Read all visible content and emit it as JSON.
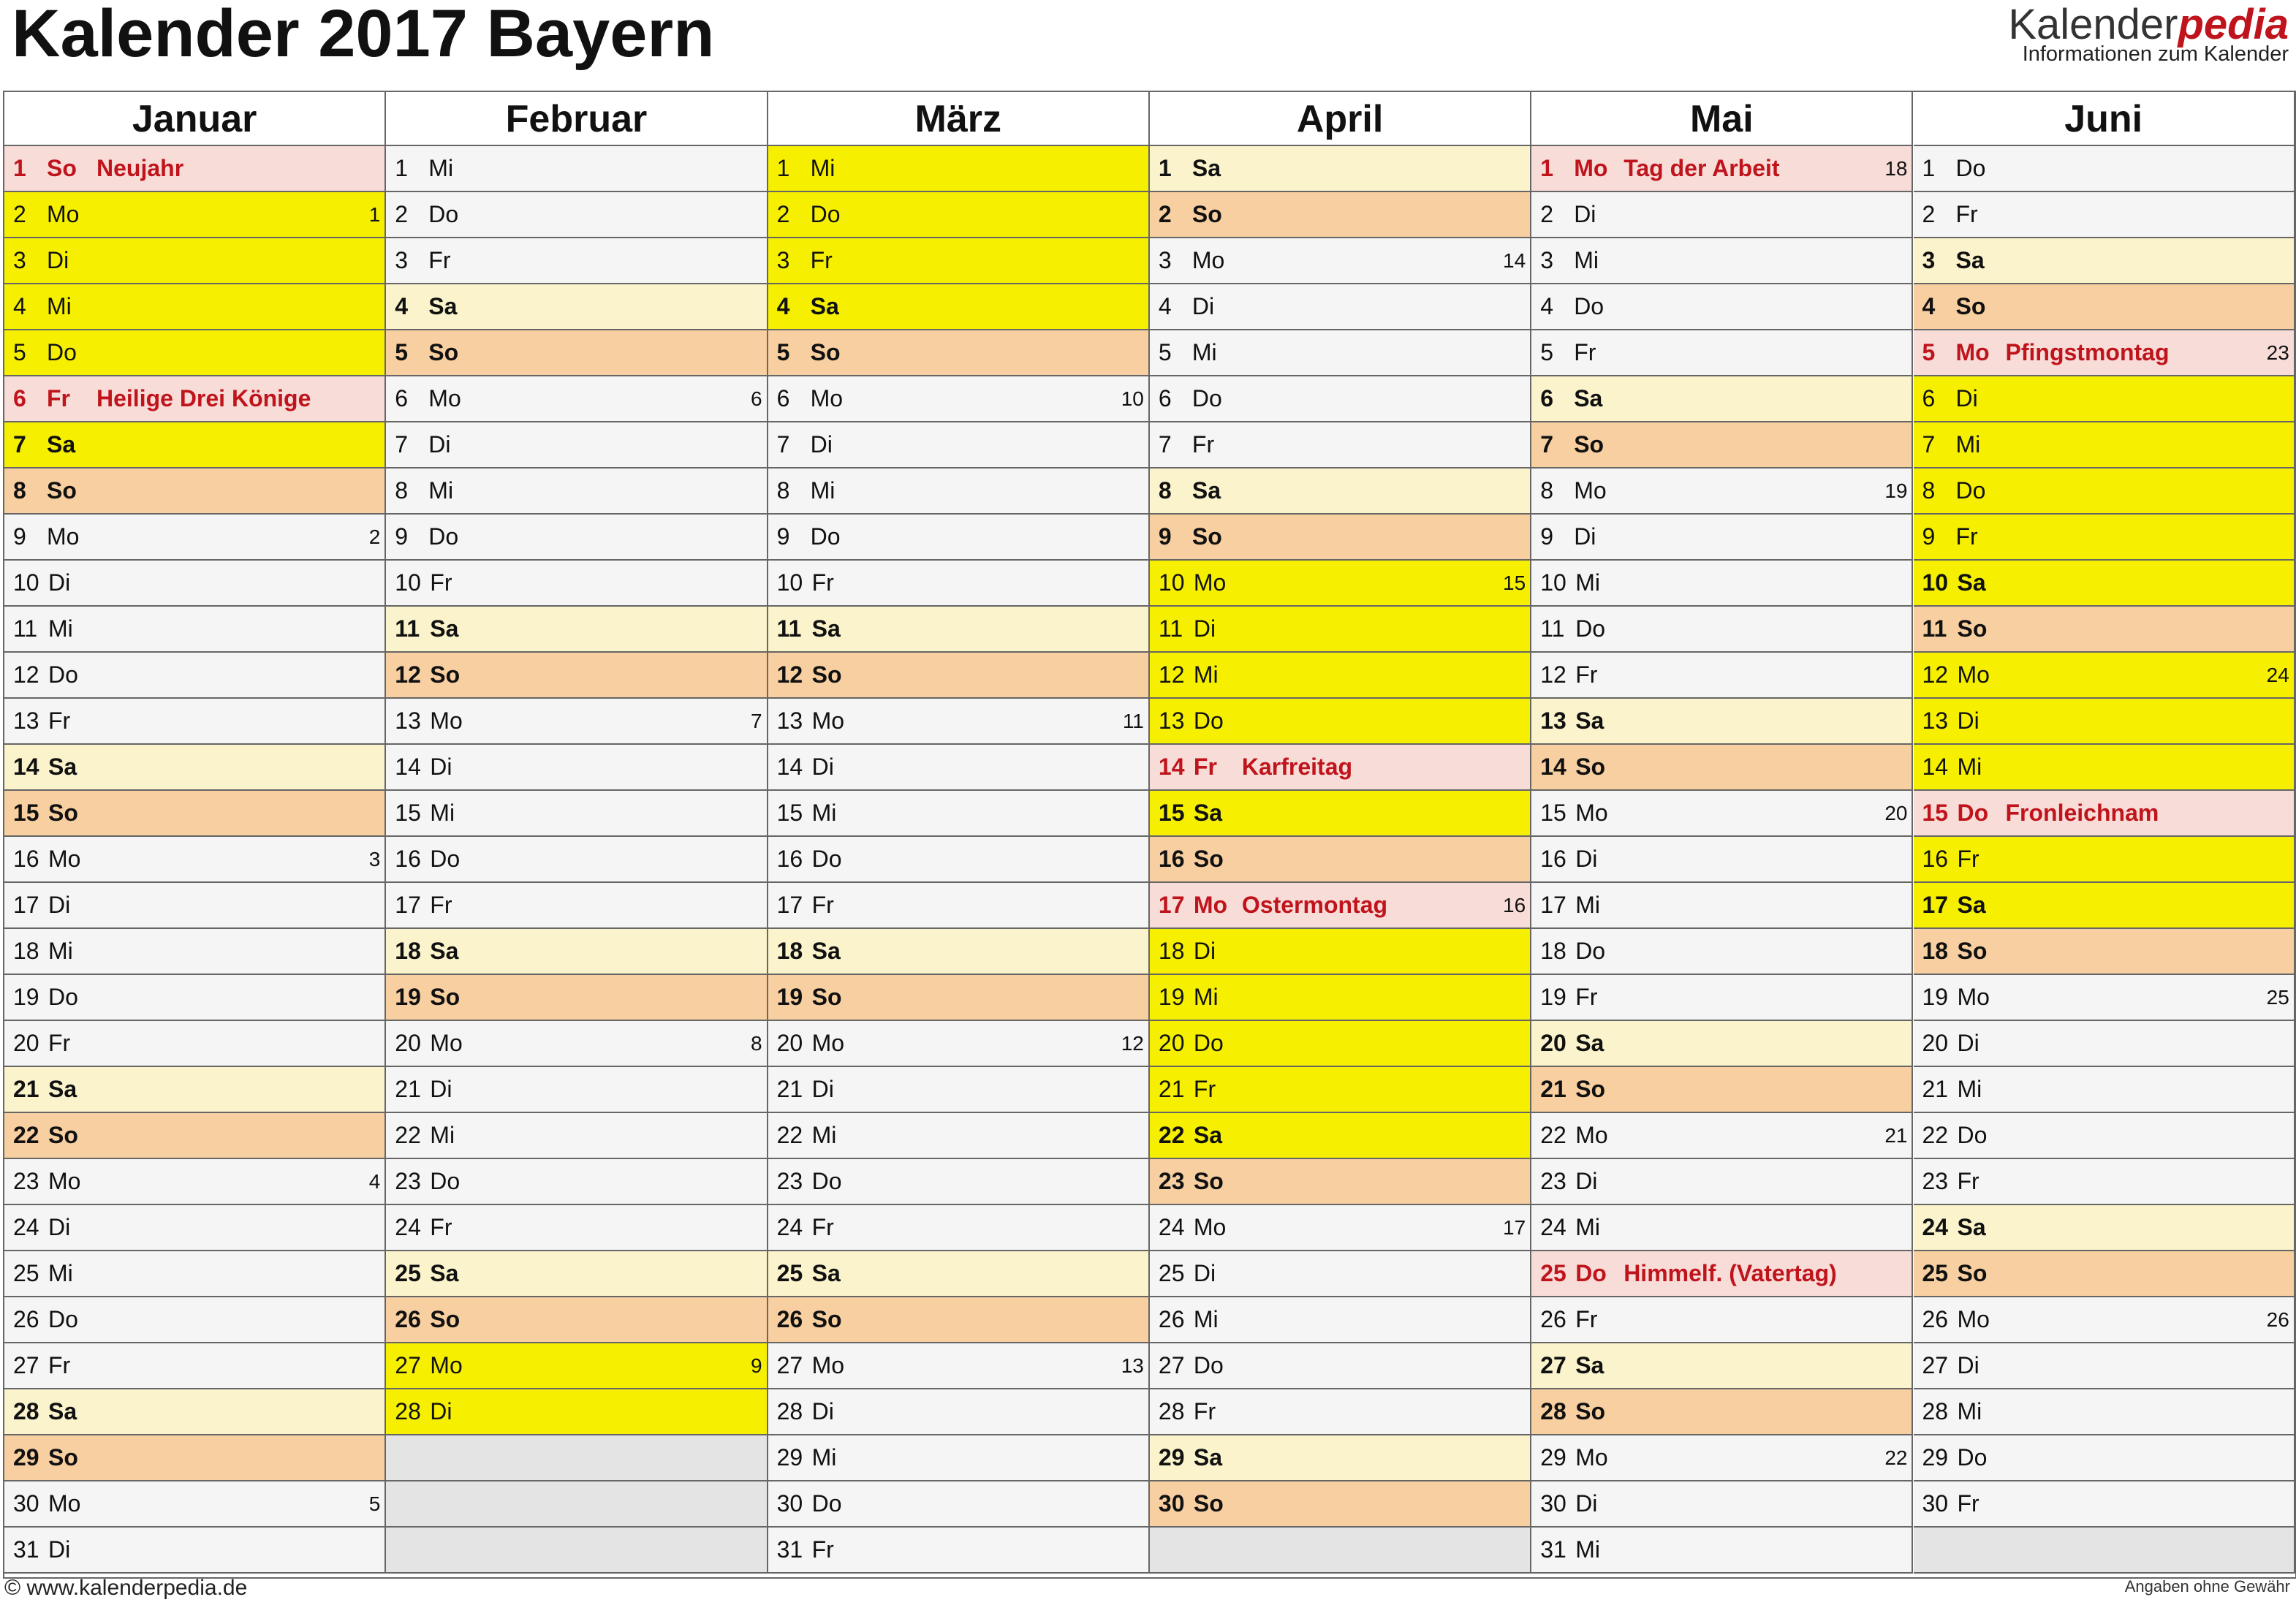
{
  "header": {
    "title": "Kalender 2017 Bayern",
    "logo_a": "Kalender",
    "logo_b": "pedia",
    "logo_sub": "Informationen zum Kalender"
  },
  "footer": {
    "left": "© www.kalenderpedia.de",
    "right": "Angaben ohne Gewähr"
  },
  "colors": {
    "holiday": "#f8dcd8",
    "sunday": "#f8cfa0",
    "saturday": "#faf3cb",
    "ferien": "#f6f000",
    "weekday": "#f5f5f5",
    "empty": "#e4e4e4"
  },
  "months": [
    {
      "name": "Januar",
      "days": [
        {
          "d": 1,
          "w": "So",
          "h": "Neujahr"
        },
        {
          "d": 2,
          "w": "Mo",
          "kw": 1,
          "f": true
        },
        {
          "d": 3,
          "w": "Di",
          "f": true
        },
        {
          "d": 4,
          "w": "Mi",
          "f": true
        },
        {
          "d": 5,
          "w": "Do",
          "f": true
        },
        {
          "d": 6,
          "w": "Fr",
          "h": "Heilige Drei Könige"
        },
        {
          "d": 7,
          "w": "Sa",
          "f": true
        },
        {
          "d": 8,
          "w": "So"
        },
        {
          "d": 9,
          "w": "Mo",
          "kw": 2
        },
        {
          "d": 10,
          "w": "Di"
        },
        {
          "d": 11,
          "w": "Mi"
        },
        {
          "d": 12,
          "w": "Do"
        },
        {
          "d": 13,
          "w": "Fr"
        },
        {
          "d": 14,
          "w": "Sa"
        },
        {
          "d": 15,
          "w": "So"
        },
        {
          "d": 16,
          "w": "Mo",
          "kw": 3
        },
        {
          "d": 17,
          "w": "Di"
        },
        {
          "d": 18,
          "w": "Mi"
        },
        {
          "d": 19,
          "w": "Do"
        },
        {
          "d": 20,
          "w": "Fr"
        },
        {
          "d": 21,
          "w": "Sa"
        },
        {
          "d": 22,
          "w": "So"
        },
        {
          "d": 23,
          "w": "Mo",
          "kw": 4
        },
        {
          "d": 24,
          "w": "Di"
        },
        {
          "d": 25,
          "w": "Mi"
        },
        {
          "d": 26,
          "w": "Do"
        },
        {
          "d": 27,
          "w": "Fr"
        },
        {
          "d": 28,
          "w": "Sa"
        },
        {
          "d": 29,
          "w": "So"
        },
        {
          "d": 30,
          "w": "Mo",
          "kw": 5
        },
        {
          "d": 31,
          "w": "Di"
        }
      ]
    },
    {
      "name": "Februar",
      "days": [
        {
          "d": 1,
          "w": "Mi"
        },
        {
          "d": 2,
          "w": "Do"
        },
        {
          "d": 3,
          "w": "Fr"
        },
        {
          "d": 4,
          "w": "Sa"
        },
        {
          "d": 5,
          "w": "So"
        },
        {
          "d": 6,
          "w": "Mo",
          "kw": 6
        },
        {
          "d": 7,
          "w": "Di"
        },
        {
          "d": 8,
          "w": "Mi"
        },
        {
          "d": 9,
          "w": "Do"
        },
        {
          "d": 10,
          "w": "Fr"
        },
        {
          "d": 11,
          "w": "Sa"
        },
        {
          "d": 12,
          "w": "So"
        },
        {
          "d": 13,
          "w": "Mo",
          "kw": 7
        },
        {
          "d": 14,
          "w": "Di"
        },
        {
          "d": 15,
          "w": "Mi"
        },
        {
          "d": 16,
          "w": "Do"
        },
        {
          "d": 17,
          "w": "Fr"
        },
        {
          "d": 18,
          "w": "Sa"
        },
        {
          "d": 19,
          "w": "So"
        },
        {
          "d": 20,
          "w": "Mo",
          "kw": 8
        },
        {
          "d": 21,
          "w": "Di"
        },
        {
          "d": 22,
          "w": "Mi"
        },
        {
          "d": 23,
          "w": "Do"
        },
        {
          "d": 24,
          "w": "Fr"
        },
        {
          "d": 25,
          "w": "Sa"
        },
        {
          "d": 26,
          "w": "So"
        },
        {
          "d": 27,
          "w": "Mo",
          "kw": 9,
          "f": true
        },
        {
          "d": 28,
          "w": "Di",
          "f": true
        }
      ]
    },
    {
      "name": "März",
      "days": [
        {
          "d": 1,
          "w": "Mi",
          "f": true
        },
        {
          "d": 2,
          "w": "Do",
          "f": true
        },
        {
          "d": 3,
          "w": "Fr",
          "f": true
        },
        {
          "d": 4,
          "w": "Sa",
          "f": true
        },
        {
          "d": 5,
          "w": "So"
        },
        {
          "d": 6,
          "w": "Mo",
          "kw": 10
        },
        {
          "d": 7,
          "w": "Di"
        },
        {
          "d": 8,
          "w": "Mi"
        },
        {
          "d": 9,
          "w": "Do"
        },
        {
          "d": 10,
          "w": "Fr"
        },
        {
          "d": 11,
          "w": "Sa"
        },
        {
          "d": 12,
          "w": "So"
        },
        {
          "d": 13,
          "w": "Mo",
          "kw": 11
        },
        {
          "d": 14,
          "w": "Di"
        },
        {
          "d": 15,
          "w": "Mi"
        },
        {
          "d": 16,
          "w": "Do"
        },
        {
          "d": 17,
          "w": "Fr"
        },
        {
          "d": 18,
          "w": "Sa"
        },
        {
          "d": 19,
          "w": "So"
        },
        {
          "d": 20,
          "w": "Mo",
          "kw": 12
        },
        {
          "d": 21,
          "w": "Di"
        },
        {
          "d": 22,
          "w": "Mi"
        },
        {
          "d": 23,
          "w": "Do"
        },
        {
          "d": 24,
          "w": "Fr"
        },
        {
          "d": 25,
          "w": "Sa"
        },
        {
          "d": 26,
          "w": "So"
        },
        {
          "d": 27,
          "w": "Mo",
          "kw": 13
        },
        {
          "d": 28,
          "w": "Di"
        },
        {
          "d": 29,
          "w": "Mi"
        },
        {
          "d": 30,
          "w": "Do"
        },
        {
          "d": 31,
          "w": "Fr"
        }
      ]
    },
    {
      "name": "April",
      "days": [
        {
          "d": 1,
          "w": "Sa"
        },
        {
          "d": 2,
          "w": "So"
        },
        {
          "d": 3,
          "w": "Mo",
          "kw": 14
        },
        {
          "d": 4,
          "w": "Di"
        },
        {
          "d": 5,
          "w": "Mi"
        },
        {
          "d": 6,
          "w": "Do"
        },
        {
          "d": 7,
          "w": "Fr"
        },
        {
          "d": 8,
          "w": "Sa"
        },
        {
          "d": 9,
          "w": "So"
        },
        {
          "d": 10,
          "w": "Mo",
          "kw": 15,
          "f": true
        },
        {
          "d": 11,
          "w": "Di",
          "f": true
        },
        {
          "d": 12,
          "w": "Mi",
          "f": true
        },
        {
          "d": 13,
          "w": "Do",
          "f": true
        },
        {
          "d": 14,
          "w": "Fr",
          "h": "Karfreitag"
        },
        {
          "d": 15,
          "w": "Sa",
          "f": true
        },
        {
          "d": 16,
          "w": "So"
        },
        {
          "d": 17,
          "w": "Mo",
          "kw": 16,
          "h": "Ostermontag"
        },
        {
          "d": 18,
          "w": "Di",
          "f": true
        },
        {
          "d": 19,
          "w": "Mi",
          "f": true
        },
        {
          "d": 20,
          "w": "Do",
          "f": true
        },
        {
          "d": 21,
          "w": "Fr",
          "f": true
        },
        {
          "d": 22,
          "w": "Sa",
          "f": true
        },
        {
          "d": 23,
          "w": "So"
        },
        {
          "d": 24,
          "w": "Mo",
          "kw": 17
        },
        {
          "d": 25,
          "w": "Di"
        },
        {
          "d": 26,
          "w": "Mi"
        },
        {
          "d": 27,
          "w": "Do"
        },
        {
          "d": 28,
          "w": "Fr"
        },
        {
          "d": 29,
          "w": "Sa"
        },
        {
          "d": 30,
          "w": "So"
        }
      ]
    },
    {
      "name": "Mai",
      "days": [
        {
          "d": 1,
          "w": "Mo",
          "kw": 18,
          "h": "Tag der Arbeit"
        },
        {
          "d": 2,
          "w": "Di"
        },
        {
          "d": 3,
          "w": "Mi"
        },
        {
          "d": 4,
          "w": "Do"
        },
        {
          "d": 5,
          "w": "Fr"
        },
        {
          "d": 6,
          "w": "Sa"
        },
        {
          "d": 7,
          "w": "So"
        },
        {
          "d": 8,
          "w": "Mo",
          "kw": 19
        },
        {
          "d": 9,
          "w": "Di"
        },
        {
          "d": 10,
          "w": "Mi"
        },
        {
          "d": 11,
          "w": "Do"
        },
        {
          "d": 12,
          "w": "Fr"
        },
        {
          "d": 13,
          "w": "Sa"
        },
        {
          "d": 14,
          "w": "So"
        },
        {
          "d": 15,
          "w": "Mo",
          "kw": 20
        },
        {
          "d": 16,
          "w": "Di"
        },
        {
          "d": 17,
          "w": "Mi"
        },
        {
          "d": 18,
          "w": "Do"
        },
        {
          "d": 19,
          "w": "Fr"
        },
        {
          "d": 20,
          "w": "Sa"
        },
        {
          "d": 21,
          "w": "So"
        },
        {
          "d": 22,
          "w": "Mo",
          "kw": 21
        },
        {
          "d": 23,
          "w": "Di"
        },
        {
          "d": 24,
          "w": "Mi"
        },
        {
          "d": 25,
          "w": "Do",
          "h": "Himmelf. (Vatertag)"
        },
        {
          "d": 26,
          "w": "Fr"
        },
        {
          "d": 27,
          "w": "Sa"
        },
        {
          "d": 28,
          "w": "So"
        },
        {
          "d": 29,
          "w": "Mo",
          "kw": 22
        },
        {
          "d": 30,
          "w": "Di"
        },
        {
          "d": 31,
          "w": "Mi"
        }
      ]
    },
    {
      "name": "Juni",
      "days": [
        {
          "d": 1,
          "w": "Do"
        },
        {
          "d": 2,
          "w": "Fr"
        },
        {
          "d": 3,
          "w": "Sa"
        },
        {
          "d": 4,
          "w": "So"
        },
        {
          "d": 5,
          "w": "Mo",
          "kw": 23,
          "h": "Pfingstmontag"
        },
        {
          "d": 6,
          "w": "Di",
          "f": true
        },
        {
          "d": 7,
          "w": "Mi",
          "f": true
        },
        {
          "d": 8,
          "w": "Do",
          "f": true
        },
        {
          "d": 9,
          "w": "Fr",
          "f": true
        },
        {
          "d": 10,
          "w": "Sa",
          "f": true
        },
        {
          "d": 11,
          "w": "So"
        },
        {
          "d": 12,
          "w": "Mo",
          "kw": 24,
          "f": true
        },
        {
          "d": 13,
          "w": "Di",
          "f": true
        },
        {
          "d": 14,
          "w": "Mi",
          "f": true
        },
        {
          "d": 15,
          "w": "Do",
          "h": "Fronleichnam"
        },
        {
          "d": 16,
          "w": "Fr",
          "f": true
        },
        {
          "d": 17,
          "w": "Sa",
          "f": true
        },
        {
          "d": 18,
          "w": "So"
        },
        {
          "d": 19,
          "w": "Mo",
          "kw": 25
        },
        {
          "d": 20,
          "w": "Di"
        },
        {
          "d": 21,
          "w": "Mi"
        },
        {
          "d": 22,
          "w": "Do"
        },
        {
          "d": 23,
          "w": "Fr"
        },
        {
          "d": 24,
          "w": "Sa"
        },
        {
          "d": 25,
          "w": "So"
        },
        {
          "d": 26,
          "w": "Mo",
          "kw": 26
        },
        {
          "d": 27,
          "w": "Di"
        },
        {
          "d": 28,
          "w": "Mi"
        },
        {
          "d": 29,
          "w": "Do"
        },
        {
          "d": 30,
          "w": "Fr"
        }
      ]
    }
  ]
}
